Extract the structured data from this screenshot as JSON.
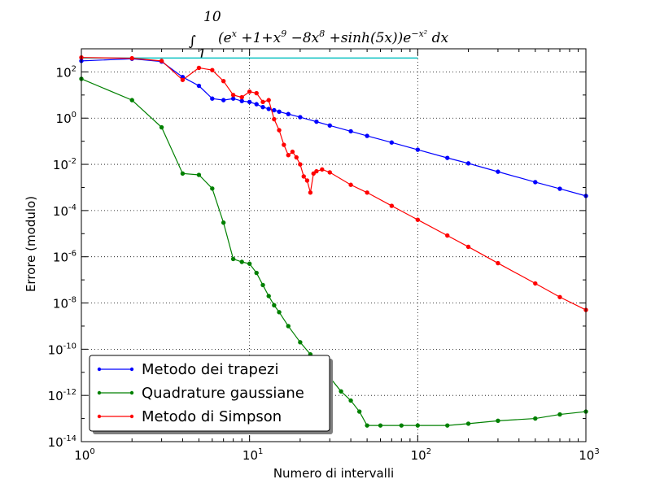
{
  "chart_data": {
    "type": "line",
    "title": "∫₁¹⁰ (eˣ + 1 + x⁹ − 8x⁸ + sinh(5x)) e^(−x²) dx",
    "title_parts": {
      "integral": "∫",
      "upper": "10",
      "lower": "1",
      "body": "(e",
      "body_exp": "x",
      "body2": " +1+x",
      "body2_exp": "9",
      "body3": " −8x",
      "body3_exp": "8",
      "body4": " +sinh(5x))e",
      "body4_exp": "−x²",
      "body5": " dx"
    },
    "xlabel": "Numero di intervalli",
    "ylabel": "Errore (modulo)",
    "xscale": "log",
    "yscale": "log",
    "xlim": [
      1,
      1000
    ],
    "ylim": [
      1e-14,
      1000
    ],
    "grid": true,
    "legend_position": "lower-left",
    "x_ticks": [
      {
        "value": 1,
        "base": "10",
        "exp": "0"
      },
      {
        "value": 10,
        "base": "10",
        "exp": "1"
      },
      {
        "value": 100,
        "base": "10",
        "exp": "2"
      },
      {
        "value": 1000,
        "base": "10",
        "exp": "3"
      }
    ],
    "y_ticks": [
      {
        "value": 1e-14,
        "base": "10",
        "exp": "-14"
      },
      {
        "value": 1e-12,
        "base": "10",
        "exp": "-12"
      },
      {
        "value": 1e-10,
        "base": "10",
        "exp": "-10"
      },
      {
        "value": 1e-08,
        "base": "10",
        "exp": "-8"
      },
      {
        "value": 1e-06,
        "base": "10",
        "exp": "-6"
      },
      {
        "value": 0.0001,
        "base": "10",
        "exp": "-4"
      },
      {
        "value": 0.01,
        "base": "10",
        "exp": "-2"
      },
      {
        "value": 1,
        "base": "10",
        "exp": "0"
      },
      {
        "value": 100,
        "base": "10",
        "exp": "2"
      }
    ],
    "reference_line": {
      "color": "#00bfbf",
      "x": [
        1,
        100
      ],
      "y": [
        400,
        400
      ]
    },
    "series": [
      {
        "name": "Metodo dei trapezi",
        "color": "#0000ff",
        "points": [
          [
            1,
            300
          ],
          [
            2,
            370
          ],
          [
            3,
            280
          ],
          [
            4,
            60
          ],
          [
            5,
            25
          ],
          [
            6,
            7
          ],
          [
            7,
            6
          ],
          [
            8,
            7
          ],
          [
            9,
            5.5
          ],
          [
            10,
            5
          ],
          [
            11,
            4
          ],
          [
            12,
            3
          ],
          [
            13,
            2.5
          ],
          [
            14,
            2.2
          ],
          [
            15,
            1.9
          ],
          [
            17,
            1.5
          ],
          [
            20,
            1.1
          ],
          [
            25,
            0.7
          ],
          [
            30,
            0.48
          ],
          [
            40,
            0.27
          ],
          [
            50,
            0.17
          ],
          [
            70,
            0.088
          ],
          [
            100,
            0.043
          ],
          [
            150,
            0.019
          ],
          [
            200,
            0.011
          ],
          [
            300,
            0.0048
          ],
          [
            500,
            0.0017
          ],
          [
            700,
            0.00088
          ],
          [
            1000,
            0.00043
          ]
        ]
      },
      {
        "name": "Quadrature gaussiane",
        "color": "#008000",
        "points": [
          [
            1,
            50
          ],
          [
            2,
            6
          ],
          [
            3,
            0.4
          ],
          [
            4,
            0.004
          ],
          [
            5,
            0.0035
          ],
          [
            6,
            0.0009
          ],
          [
            7,
            3e-05
          ],
          [
            8,
            8e-07
          ],
          [
            9,
            6e-07
          ],
          [
            10,
            5e-07
          ],
          [
            11,
            2e-07
          ],
          [
            12,
            6e-08
          ],
          [
            13,
            2e-08
          ],
          [
            14,
            8e-09
          ],
          [
            15,
            4e-09
          ],
          [
            17,
            1e-09
          ],
          [
            20,
            2e-10
          ],
          [
            23,
            6e-11
          ],
          [
            26,
            2e-11
          ],
          [
            30,
            6e-12
          ],
          [
            35,
            1.5e-12
          ],
          [
            40,
            6e-13
          ],
          [
            45,
            2e-13
          ],
          [
            50,
            5e-14
          ],
          [
            60,
            5e-14
          ],
          [
            80,
            5e-14
          ],
          [
            100,
            5e-14
          ],
          [
            150,
            5e-14
          ],
          [
            200,
            6e-14
          ],
          [
            300,
            8e-14
          ],
          [
            500,
            1e-13
          ],
          [
            700,
            1.5e-13
          ],
          [
            1000,
            2e-13
          ]
        ]
      },
      {
        "name": "Metodo di Simpson",
        "color": "#ff0000",
        "points": [
          [
            1,
            420
          ],
          [
            2,
            390
          ],
          [
            3,
            300
          ],
          [
            4,
            45
          ],
          [
            5,
            150
          ],
          [
            6,
            120
          ],
          [
            7,
            40
          ],
          [
            8,
            10
          ],
          [
            9,
            8
          ],
          [
            10,
            14
          ],
          [
            11,
            12
          ],
          [
            12,
            5
          ],
          [
            13,
            6
          ],
          [
            14,
            0.9
          ],
          [
            15,
            0.3
          ],
          [
            16,
            0.07
          ],
          [
            17,
            0.025
          ],
          [
            18,
            0.035
          ],
          [
            19,
            0.02
          ],
          [
            20,
            0.01
          ],
          [
            21,
            0.003
          ],
          [
            22,
            0.002
          ],
          [
            23,
            0.0006
          ],
          [
            24,
            0.004
          ],
          [
            25,
            0.005
          ],
          [
            27,
            0.006
          ],
          [
            30,
            0.0045
          ],
          [
            40,
            0.0013
          ],
          [
            50,
            0.0006
          ],
          [
            70,
            0.00016
          ],
          [
            100,
            4e-05
          ],
          [
            150,
            8.3e-06
          ],
          [
            200,
            2.7e-06
          ],
          [
            300,
            5.3e-07
          ],
          [
            500,
            7e-08
          ],
          [
            700,
            1.8e-08
          ],
          [
            1000,
            5e-09
          ]
        ]
      }
    ]
  }
}
